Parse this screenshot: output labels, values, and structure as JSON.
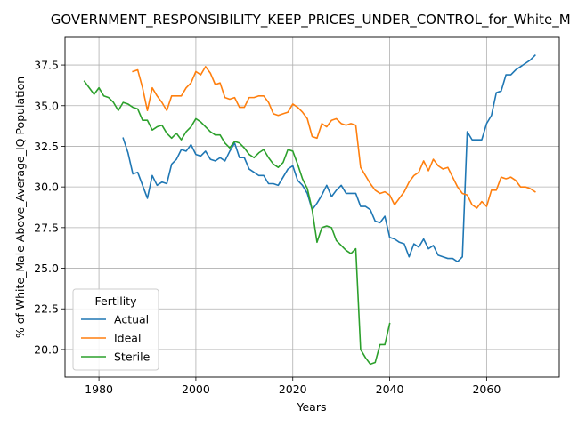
{
  "chart_data": {
    "type": "line",
    "title": "GOVERNMENT_RESPONSIBILITY_KEEP_PRICES_UNDER_CONTROL_for_White_Male",
    "xlabel": "Years",
    "ylabel": "% of White_Male Above_Average_IQ Population",
    "xlim": [
      1973,
      2075
    ],
    "ylim": [
      18.3,
      39.2
    ],
    "xticks": [
      1980,
      2000,
      2020,
      2040,
      2060
    ],
    "yticks": [
      20.0,
      22.5,
      25.0,
      27.5,
      30.0,
      32.5,
      35.0,
      37.5
    ],
    "grid": true,
    "legend": {
      "title": "Fertility",
      "placement": "lower-left"
    },
    "series": [
      {
        "name": "Actual",
        "color": "#1f77b4",
        "x": [
          1985,
          1986,
          1987,
          1988,
          1989,
          1990,
          1991,
          1992,
          1993,
          1994,
          1995,
          1996,
          1997,
          1998,
          1999,
          2000,
          2001,
          2002,
          2003,
          2004,
          2005,
          2006,
          2007,
          2008,
          2009,
          2010,
          2011,
          2012,
          2013,
          2014,
          2015,
          2016,
          2017,
          2018,
          2019,
          2020,
          2021,
          2022,
          2023,
          2024,
          2025,
          2026,
          2027,
          2028,
          2029,
          2030,
          2031,
          2032,
          2033,
          2034,
          2035,
          2036,
          2037,
          2038,
          2039,
          2040,
          2041,
          2042,
          2043,
          2044,
          2045,
          2046,
          2047,
          2048,
          2049,
          2050,
          2051,
          2052,
          2053,
          2054,
          2055,
          2056,
          2057,
          2058,
          2059,
          2060,
          2061,
          2062,
          2063,
          2064,
          2065,
          2066,
          2067,
          2068,
          2069,
          2070
        ],
        "values": [
          33.0,
          32.1,
          30.8,
          30.9,
          30.1,
          29.3,
          30.7,
          30.1,
          30.3,
          30.2,
          31.4,
          31.7,
          32.3,
          32.2,
          32.6,
          32.0,
          31.9,
          32.2,
          31.7,
          31.6,
          31.8,
          31.6,
          32.2,
          32.7,
          31.8,
          31.8,
          31.1,
          30.9,
          30.7,
          30.7,
          30.2,
          30.2,
          30.1,
          30.6,
          31.1,
          31.3,
          30.4,
          30.1,
          29.6,
          28.6,
          29.0,
          29.5,
          30.1,
          29.4,
          29.8,
          30.1,
          29.6,
          29.6,
          29.6,
          28.8,
          28.8,
          28.6,
          27.9,
          27.8,
          28.2,
          26.9,
          26.8,
          26.6,
          26.5,
          25.7,
          26.5,
          26.3,
          26.8,
          26.2,
          26.4,
          25.8,
          25.7,
          25.6,
          25.6,
          25.4,
          25.7,
          33.4,
          32.9,
          32.9,
          32.9,
          33.9,
          34.4,
          35.8,
          35.9,
          36.9,
          36.9,
          37.2,
          37.4,
          37.6,
          37.8,
          38.1
        ]
      },
      {
        "name": "Ideal",
        "color": "#ff7f0e",
        "x": [
          1987,
          1988,
          1989,
          1990,
          1991,
          1992,
          1993,
          1994,
          1995,
          1996,
          1997,
          1998,
          1999,
          2000,
          2001,
          2002,
          2003,
          2004,
          2005,
          2006,
          2007,
          2008,
          2009,
          2010,
          2011,
          2012,
          2013,
          2014,
          2015,
          2016,
          2017,
          2018,
          2019,
          2020,
          2021,
          2022,
          2023,
          2024,
          2025,
          2026,
          2027,
          2028,
          2029,
          2030,
          2031,
          2032,
          2033,
          2034,
          2035,
          2036,
          2037,
          2038,
          2039,
          2040,
          2041,
          2042,
          2043,
          2044,
          2045,
          2046,
          2047,
          2048,
          2049,
          2050,
          2051,
          2052,
          2053,
          2054,
          2055,
          2056,
          2057,
          2058,
          2059,
          2060,
          2061,
          2062,
          2063,
          2064,
          2065,
          2066,
          2067,
          2068,
          2069,
          2070
        ],
        "values": [
          37.1,
          37.2,
          36.1,
          34.7,
          36.1,
          35.6,
          35.2,
          34.7,
          35.6,
          35.6,
          35.6,
          36.1,
          36.4,
          37.1,
          36.9,
          37.4,
          37.0,
          36.3,
          36.4,
          35.5,
          35.4,
          35.5,
          34.9,
          34.9,
          35.5,
          35.5,
          35.6,
          35.6,
          35.2,
          34.5,
          34.4,
          34.5,
          34.6,
          35.1,
          34.9,
          34.6,
          34.2,
          33.1,
          33.0,
          33.9,
          33.7,
          34.1,
          34.2,
          33.9,
          33.8,
          33.9,
          33.8,
          31.2,
          30.7,
          30.2,
          29.8,
          29.6,
          29.7,
          29.5,
          28.9,
          29.3,
          29.7,
          30.3,
          30.7,
          30.9,
          31.6,
          31.0,
          31.7,
          31.3,
          31.1,
          31.2,
          30.6,
          30.0,
          29.6,
          29.5,
          28.9,
          28.7,
          29.1,
          28.8,
          29.8,
          29.8,
          30.6,
          30.5,
          30.6,
          30.4,
          30.0,
          30.0,
          29.9,
          29.7
        ]
      },
      {
        "name": "Sterile",
        "color": "#2ca02c",
        "x": [
          1977,
          1978,
          1979,
          1980,
          1981,
          1982,
          1983,
          1984,
          1985,
          1986,
          1987,
          1988,
          1989,
          1990,
          1991,
          1992,
          1993,
          1994,
          1995,
          1996,
          1997,
          1998,
          1999,
          2000,
          2001,
          2002,
          2003,
          2004,
          2005,
          2006,
          2007,
          2008,
          2009,
          2010,
          2011,
          2012,
          2013,
          2014,
          2015,
          2016,
          2017,
          2018,
          2019,
          2020,
          2021,
          2022,
          2023,
          2024,
          2025,
          2026,
          2027,
          2028,
          2029,
          2030,
          2031,
          2032,
          2033,
          2034,
          2035,
          2036,
          2037,
          2038,
          2039,
          2040
        ],
        "values": [
          36.5,
          36.1,
          35.7,
          36.1,
          35.6,
          35.5,
          35.2,
          34.7,
          35.2,
          35.1,
          34.9,
          34.8,
          34.1,
          34.1,
          33.5,
          33.7,
          33.8,
          33.3,
          33.0,
          33.3,
          32.9,
          33.4,
          33.7,
          34.2,
          34.0,
          33.7,
          33.4,
          33.2,
          33.2,
          32.7,
          32.4,
          32.8,
          32.7,
          32.4,
          32.0,
          31.8,
          32.1,
          32.3,
          31.8,
          31.4,
          31.2,
          31.5,
          32.3,
          32.2,
          31.4,
          30.5,
          29.9,
          28.6,
          26.6,
          27.5,
          27.6,
          27.5,
          26.7,
          26.4,
          26.1,
          25.9,
          26.2,
          20.0,
          19.5,
          19.1,
          19.2,
          20.3,
          20.3,
          21.6
        ]
      }
    ]
  }
}
